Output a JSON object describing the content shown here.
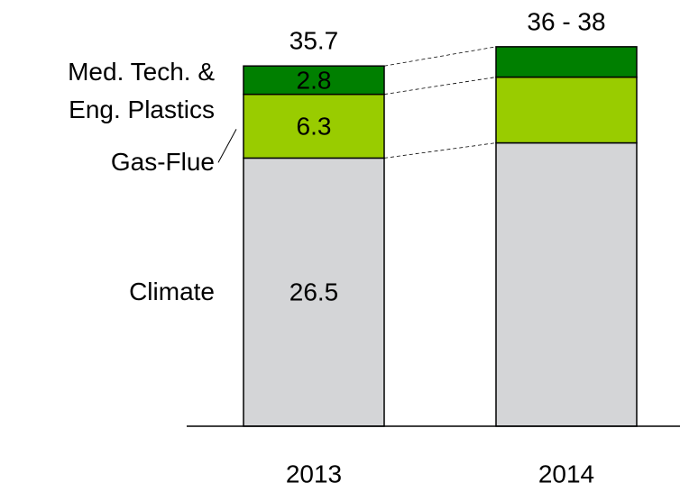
{
  "chart_data": {
    "type": "stacked-bar",
    "categories": [
      "2013",
      "2014"
    ],
    "series": [
      {
        "name": "Climate",
        "color": "#d4d5d7",
        "values": [
          26.5,
          28.0
        ],
        "value_labels": [
          "26.5",
          null
        ]
      },
      {
        "name": "Gas-Flue",
        "color": "#99cc00",
        "values": [
          6.3,
          6.5
        ],
        "value_labels": [
          "6.3",
          null
        ]
      },
      {
        "name": "Med. Tech. &\nEng. Plastics",
        "color": "#007f00",
        "values": [
          2.8,
          3.0
        ],
        "value_labels": [
          "2.8",
          null
        ]
      }
    ],
    "annotations": [
      "35.7",
      "36 - 38"
    ],
    "ylim": [
      0,
      40
    ]
  }
}
